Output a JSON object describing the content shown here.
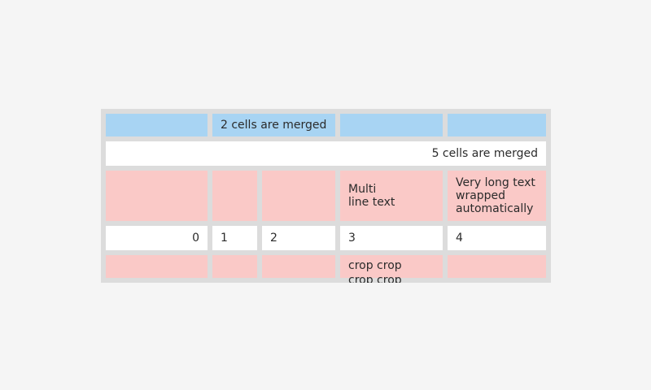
{
  "colors": {
    "page_bg": "#f5f5f5",
    "spacer": "#dcdcdc",
    "blue": "#a8d4f3",
    "pink": "#fac9c7",
    "white": "#ffffff",
    "text": "#2b2b2b"
  },
  "table": {
    "row1": {
      "merged_cell": "2 cells are merged"
    },
    "row2": {
      "merged_cell": "5 cells are merged"
    },
    "row3": {
      "col4": "Multi\nline text",
      "col5": "Very long text wrapped automatically"
    },
    "row4": {
      "col1": "0",
      "col2": "1",
      "col3": "2",
      "col4": "3",
      "col5": "4"
    },
    "row5": {
      "col4": "crop crop crop crop"
    }
  }
}
